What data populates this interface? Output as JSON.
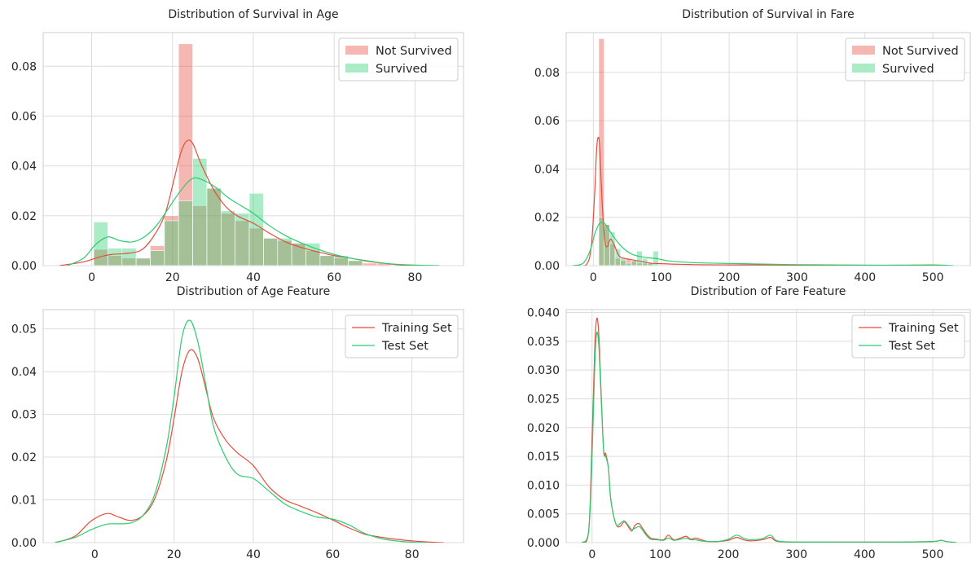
{
  "colors": {
    "red": "#e74c3c",
    "green": "#2ecc71"
  },
  "chart_data": [
    {
      "id": "age-survival",
      "type": "histogram",
      "title": "Distribution of Survival in Age",
      "xlim": [
        -12,
        92
      ],
      "ylim": [
        0,
        0.0935
      ],
      "xticks": [
        0,
        20,
        40,
        60,
        80
      ],
      "yticks": [
        0.0,
        0.02,
        0.04,
        0.06,
        0.08
      ],
      "ytick_labels": [
        "0.00",
        "0.02",
        "0.04",
        "0.06",
        "0.08"
      ],
      "legend": [
        "Not Survived",
        "Survived"
      ],
      "series": [
        {
          "name": "Not Survived",
          "color": "#e74c3c",
          "bin_width": 3.5,
          "bins": [
            {
              "x": 0.5,
              "y": 0.0065
            },
            {
              "x": 4,
              "y": 0.004
            },
            {
              "x": 7.5,
              "y": 0.003
            },
            {
              "x": 11,
              "y": 0.003
            },
            {
              "x": 14.5,
              "y": 0.008
            },
            {
              "x": 18,
              "y": 0.02
            },
            {
              "x": 21.5,
              "y": 0.089
            },
            {
              "x": 25,
              "y": 0.024
            },
            {
              "x": 28.5,
              "y": 0.031
            },
            {
              "x": 32,
              "y": 0.021
            },
            {
              "x": 35.5,
              "y": 0.018
            },
            {
              "x": 39,
              "y": 0.015
            },
            {
              "x": 42.5,
              "y": 0.011
            },
            {
              "x": 46,
              "y": 0.01
            },
            {
              "x": 49.5,
              "y": 0.009
            },
            {
              "x": 53,
              "y": 0.006
            },
            {
              "x": 56.5,
              "y": 0.004
            },
            {
              "x": 60,
              "y": 0.003
            },
            {
              "x": 63.5,
              "y": 0.002
            },
            {
              "x": 67,
              "y": 0.001
            },
            {
              "x": 70.5,
              "y": 0.001
            }
          ],
          "kde": {
            "x": [
              -8,
              -2,
              2,
              5,
              8,
              12,
              15,
              18,
              20,
              22,
              23.5,
              25,
              27,
              30,
              33,
              36,
              40,
              44,
              48,
              52,
              56,
              60,
              64,
              68,
              72,
              76,
              80
            ],
            "y": [
              0,
              0.0015,
              0.0035,
              0.0045,
              0.0048,
              0.006,
              0.011,
              0.02,
              0.032,
              0.045,
              0.05,
              0.049,
              0.041,
              0.031,
              0.024,
              0.02,
              0.017,
              0.013,
              0.0095,
              0.0072,
              0.0055,
              0.004,
              0.003,
              0.0018,
              0.001,
              0.0003,
              0
            ]
          }
        },
        {
          "name": "Survived",
          "color": "#2ecc71",
          "bin_width": 3.5,
          "bins": [
            {
              "x": 0.5,
              "y": 0.0175
            },
            {
              "x": 4,
              "y": 0.007
            },
            {
              "x": 7.5,
              "y": 0.007
            },
            {
              "x": 11,
              "y": 0.003
            },
            {
              "x": 14.5,
              "y": 0.006
            },
            {
              "x": 18,
              "y": 0.018
            },
            {
              "x": 21.5,
              "y": 0.026
            },
            {
              "x": 25,
              "y": 0.043
            },
            {
              "x": 28.5,
              "y": 0.031
            },
            {
              "x": 32,
              "y": 0.022
            },
            {
              "x": 35.5,
              "y": 0.021
            },
            {
              "x": 39,
              "y": 0.029
            },
            {
              "x": 42.5,
              "y": 0.011
            },
            {
              "x": 46,
              "y": 0.011
            },
            {
              "x": 49.5,
              "y": 0.009
            },
            {
              "x": 53,
              "y": 0.009
            },
            {
              "x": 56.5,
              "y": 0.004
            },
            {
              "x": 60,
              "y": 0.004
            },
            {
              "x": 63.5,
              "y": 0.002
            }
          ],
          "kde": {
            "x": [
              -6,
              -2,
              1,
              4,
              7,
              10,
              13,
              16,
              19,
              22,
              25,
              28,
              31,
              34,
              37,
              40,
              44,
              48,
              52,
              56,
              60,
              64,
              68,
              72,
              76,
              80,
              86
            ],
            "y": [
              0,
              0.003,
              0.0085,
              0.0115,
              0.01,
              0.0095,
              0.0115,
              0.016,
              0.023,
              0.03,
              0.035,
              0.034,
              0.031,
              0.027,
              0.024,
              0.021,
              0.016,
              0.012,
              0.009,
              0.0065,
              0.0045,
              0.003,
              0.002,
              0.001,
              0.0005,
              0.0002,
              0
            ]
          }
        }
      ]
    },
    {
      "id": "fare-survival",
      "type": "histogram",
      "title": "Distribution of Survival in Fare",
      "xlim": [
        -40,
        555
      ],
      "ylim": [
        0,
        0.0965
      ],
      "xticks": [
        0,
        100,
        200,
        300,
        400,
        500
      ],
      "yticks": [
        0.0,
        0.02,
        0.04,
        0.06,
        0.08
      ],
      "ytick_labels": [
        "0.00",
        "0.02",
        "0.04",
        "0.06",
        "0.08"
      ],
      "legend": [
        "Not Survived",
        "Survived"
      ],
      "series": [
        {
          "name": "Not Survived",
          "color": "#e74c3c",
          "bin_width": 8,
          "bins": [
            {
              "x": 8,
              "y": 0.094
            },
            {
              "x": 16,
              "y": 0.017
            },
            {
              "x": 24,
              "y": 0.009
            },
            {
              "x": 32,
              "y": 0.003
            },
            {
              "x": 40,
              "y": 0.002
            },
            {
              "x": 48,
              "y": 0.003
            },
            {
              "x": 56,
              "y": 0.002
            },
            {
              "x": 64,
              "y": 0.001
            },
            {
              "x": 72,
              "y": 0.001
            },
            {
              "x": 80,
              "y": 0.001
            }
          ],
          "kde": {
            "x": [
              -25,
              -10,
              -3,
              2,
              5,
              8,
              10,
              13,
              17,
              21,
              25,
              30,
              38,
              46,
              55,
              65,
              75,
              85,
              100,
              120,
              150,
              200,
              250,
              300,
              350,
              420,
              520
            ],
            "y": [
              0,
              0.0005,
              0.008,
              0.03,
              0.049,
              0.053,
              0.045,
              0.026,
              0.01,
              0.008,
              0.011,
              0.009,
              0.004,
              0.003,
              0.0025,
              0.002,
              0.0015,
              0.001,
              0.0008,
              0.0006,
              0.0004,
              0.0003,
              0.0003,
              0.0002,
              0.0001,
              0,
              0
            ]
          }
        },
        {
          "name": "Survived",
          "color": "#2ecc71",
          "bin_width": 8,
          "bins": [
            {
              "x": 8,
              "y": 0.02
            },
            {
              "x": 16,
              "y": 0.017
            },
            {
              "x": 24,
              "y": 0.014
            },
            {
              "x": 32,
              "y": 0.007
            },
            {
              "x": 40,
              "y": 0.003
            },
            {
              "x": 48,
              "y": 0.001
            },
            {
              "x": 56,
              "y": 0.002
            },
            {
              "x": 64,
              "y": 0.006
            },
            {
              "x": 72,
              "y": 0.003
            },
            {
              "x": 80,
              "y": 0.001
            },
            {
              "x": 88,
              "y": 0.006
            }
          ],
          "kde": {
            "x": [
              -30,
              -15,
              -5,
              2,
              8,
              13,
              18,
              25,
              35,
              45,
              55,
              65,
              80,
              95,
              110,
              130,
              150,
              180,
              220,
              260,
              300,
              350,
              400,
              450,
              500,
              530
            ],
            "y": [
              0,
              0.001,
              0.006,
              0.013,
              0.017,
              0.018,
              0.017,
              0.014,
              0.01,
              0.007,
              0.005,
              0.004,
              0.0033,
              0.0028,
              0.002,
              0.0015,
              0.0012,
              0.001,
              0.0008,
              0.0006,
              0.0004,
              0.0003,
              0.0002,
              0.0002,
              0.0003,
              0
            ]
          }
        }
      ]
    },
    {
      "id": "age-feature",
      "type": "line",
      "title": "Distribution of Age Feature",
      "xlim": [
        -13,
        93
      ],
      "ylim": [
        0,
        0.0545
      ],
      "xticks": [
        0,
        20,
        40,
        60,
        80
      ],
      "yticks": [
        0.0,
        0.01,
        0.02,
        0.03,
        0.04,
        0.05
      ],
      "ytick_labels": [
        "0.00",
        "0.01",
        "0.02",
        "0.03",
        "0.04",
        "0.05"
      ],
      "legend": [
        "Training Set",
        "Test Set"
      ],
      "series": [
        {
          "name": "Training Set",
          "color": "#e74c3c",
          "x": [
            -10,
            -5,
            -1,
            3,
            6,
            9,
            12,
            15,
            18,
            20,
            22,
            24,
            26,
            28,
            30,
            33,
            36,
            40,
            44,
            48,
            52,
            56,
            60,
            64,
            68,
            72,
            76,
            80,
            85,
            88
          ],
          "y": [
            0,
            0.0015,
            0.005,
            0.0068,
            0.006,
            0.0052,
            0.0062,
            0.01,
            0.019,
            0.029,
            0.04,
            0.045,
            0.043,
            0.036,
            0.029,
            0.024,
            0.021,
            0.018,
            0.013,
            0.01,
            0.0085,
            0.007,
            0.0053,
            0.0035,
            0.002,
            0.0013,
            0.0008,
            0.0004,
            0.0001,
            0
          ]
        },
        {
          "name": "Test Set",
          "color": "#2ecc71",
          "x": [
            -10,
            -5,
            -1,
            3,
            6,
            9,
            12,
            15,
            18,
            20,
            22,
            24,
            26,
            28,
            30,
            33,
            36,
            40,
            44,
            48,
            52,
            56,
            60,
            64,
            68,
            72,
            76,
            80,
            84
          ],
          "y": [
            0,
            0.0012,
            0.003,
            0.0043,
            0.0044,
            0.0046,
            0.0062,
            0.011,
            0.022,
            0.034,
            0.048,
            0.052,
            0.047,
            0.037,
            0.027,
            0.02,
            0.016,
            0.015,
            0.012,
            0.009,
            0.0073,
            0.006,
            0.0055,
            0.0042,
            0.0022,
            0.001,
            0.0004,
            0.0001,
            0
          ]
        }
      ]
    },
    {
      "id": "fare-feature",
      "type": "line",
      "title": "Distribution of Fare Feature",
      "xlim": [
        -38,
        555
      ],
      "ylim": [
        0,
        0.0405
      ],
      "xticks": [
        0,
        100,
        200,
        300,
        400,
        500
      ],
      "yticks": [
        0.0,
        0.005,
        0.01,
        0.015,
        0.02,
        0.025,
        0.03,
        0.035,
        0.04
      ],
      "ytick_labels": [
        "0.000",
        "0.005",
        "0.010",
        "0.015",
        "0.020",
        "0.025",
        "0.030",
        "0.035",
        "0.040"
      ],
      "legend": [
        "Training Set",
        "Test Set"
      ],
      "series": [
        {
          "name": "Training Set",
          "color": "#e74c3c",
          "x": [
            -15,
            -5,
            0,
            4,
            7,
            10,
            13,
            17,
            20,
            24,
            27,
            31,
            36,
            41,
            47,
            52,
            58,
            63,
            69,
            74,
            80,
            86,
            95,
            105,
            112,
            120,
            130,
            138,
            145,
            152,
            160,
            170,
            185,
            200,
            212,
            222,
            232,
            250,
            262,
            272,
            300,
            350,
            400,
            450,
            500,
            512,
            520,
            535
          ],
          "y": [
            0,
            0.002,
            0.018,
            0.034,
            0.039,
            0.036,
            0.027,
            0.016,
            0.0155,
            0.013,
            0.008,
            0.005,
            0.003,
            0.0028,
            0.0036,
            0.003,
            0.002,
            0.003,
            0.0033,
            0.0025,
            0.0015,
            0.0008,
            0.0006,
            0.0005,
            0.0013,
            0.0005,
            0.0008,
            0.0011,
            0.0006,
            0.0008,
            0.0005,
            0.0002,
            0.0002,
            0.0004,
            0.0009,
            0.0005,
            0.0003,
            0.0005,
            0.0009,
            0.0002,
            0.0001,
            0.0001,
            0.0001,
            0.0001,
            0.0002,
            0.0004,
            0.0002,
            0
          ]
        },
        {
          "name": "Test Set",
          "color": "#2ecc71",
          "x": [
            -15,
            -5,
            0,
            4,
            7,
            10,
            13,
            17,
            20,
            24,
            27,
            31,
            36,
            41,
            47,
            52,
            58,
            63,
            69,
            74,
            80,
            86,
            95,
            105,
            112,
            120,
            130,
            138,
            145,
            152,
            160,
            170,
            185,
            200,
            212,
            222,
            232,
            250,
            262,
            272,
            300,
            350,
            400,
            450,
            500,
            512,
            520,
            535
          ],
          "y": [
            0,
            0.002,
            0.015,
            0.031,
            0.0365,
            0.034,
            0.026,
            0.016,
            0.015,
            0.013,
            0.008,
            0.005,
            0.003,
            0.0033,
            0.0038,
            0.0032,
            0.0023,
            0.0025,
            0.0028,
            0.0022,
            0.0012,
            0.0006,
            0.0005,
            0.0004,
            0.0008,
            0.0004,
            0.0006,
            0.0008,
            0.0005,
            0.0005,
            0.0003,
            0.0002,
            0.0002,
            0.0006,
            0.0013,
            0.0008,
            0.0005,
            0.0007,
            0.0013,
            0.0003,
            0.0001,
            0.0001,
            0.0001,
            0.0001,
            0.0002,
            0.0004,
            0.0002,
            0
          ]
        }
      ]
    }
  ]
}
